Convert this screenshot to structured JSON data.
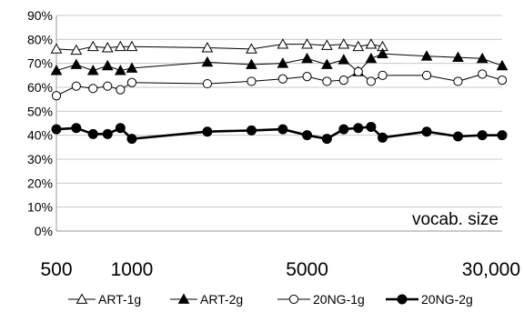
{
  "chart_data": {
    "type": "line",
    "x_scale": "log",
    "xlim": [
      500,
      30000
    ],
    "ylim": [
      0,
      90
    ],
    "y_ticks": [
      0,
      10,
      20,
      30,
      40,
      50,
      60,
      70,
      80,
      90
    ],
    "y_tick_suffix": "%",
    "x_ticks": [
      {
        "value": 500,
        "label": "500"
      },
      {
        "value": 1000,
        "label": "1000"
      },
      {
        "value": 5000,
        "label": "5000"
      },
      {
        "value": 30000,
        "label": "30,000"
      }
    ],
    "annotation": "vocab. size",
    "grid": "horizontal",
    "legend_position": "bottom",
    "series": [
      {
        "name": "ART-1g",
        "marker": "triangle-open",
        "line_color": "#000000",
        "line_width": 1,
        "x": [
          500,
          600,
          700,
          800,
          900,
          1000,
          2000,
          3000,
          4000,
          5000,
          6000,
          7000,
          8000,
          9000,
          10000
        ],
        "y": [
          76,
          75.5,
          77,
          76.5,
          77,
          77,
          76.5,
          76,
          78,
          78,
          77.5,
          78,
          77,
          78,
          77
        ]
      },
      {
        "name": "ART-2g",
        "marker": "triangle-filled",
        "line_color": "#000000",
        "line_width": 1,
        "x": [
          500,
          600,
          700,
          800,
          900,
          1000,
          2000,
          3000,
          4000,
          5000,
          6000,
          7000,
          8000,
          9000,
          10000,
          15000,
          20000,
          25000,
          30000
        ],
        "y": [
          67,
          69.5,
          67,
          69,
          67,
          68,
          70.5,
          69.5,
          70,
          72,
          69.5,
          71.5,
          66.5,
          72,
          74,
          73,
          72.5,
          72,
          69
        ]
      },
      {
        "name": "20NG-1g",
        "marker": "circle-open",
        "line_color": "#000000",
        "line_width": 1,
        "x": [
          500,
          600,
          700,
          800,
          900,
          1000,
          2000,
          3000,
          4000,
          5000,
          6000,
          7000,
          8000,
          9000,
          10000,
          15000,
          20000,
          25000,
          30000
        ],
        "y": [
          56.5,
          60.5,
          59.5,
          60.5,
          59,
          62,
          61.5,
          62.5,
          63.5,
          64.5,
          62.5,
          63,
          66.5,
          62.5,
          65,
          65,
          62.5,
          65.5,
          63
        ]
      },
      {
        "name": "20NG-2g",
        "marker": "circle-filled",
        "line_color": "#000000",
        "line_width": 2.6,
        "x": [
          500,
          600,
          700,
          800,
          900,
          1000,
          2000,
          3000,
          4000,
          5000,
          6000,
          7000,
          8000,
          9000,
          10000,
          15000,
          20000,
          25000,
          30000
        ],
        "y": [
          42.5,
          43,
          40.5,
          40.5,
          43,
          38.5,
          41.5,
          42,
          42.5,
          40,
          38.5,
          42.5,
          43,
          43.5,
          39,
          41.5,
          39.5,
          40,
          40
        ]
      }
    ]
  }
}
